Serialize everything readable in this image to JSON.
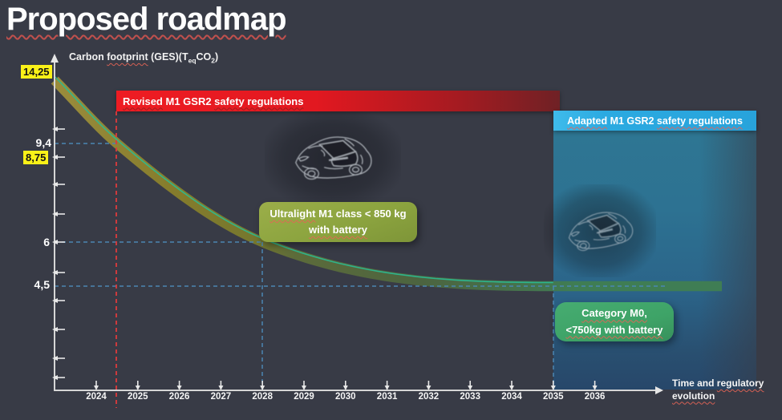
{
  "slide": {
    "title": "Proposed roadmap"
  },
  "y_axis": {
    "label_pre": "Carbon ",
    "label_footprint": "footprint",
    "label_mid": " (GES)(T",
    "label_sub_eq": "eq",
    "label_co": "CO",
    "label_sub_2": "2",
    "label_post": ")",
    "tick_14_25": "14,25",
    "tick_9_4": "9,4",
    "tick_8_75": "8,75",
    "tick_6": "6",
    "tick_4_5": "4,5"
  },
  "x_axis": {
    "years": [
      "2024",
      "2025",
      "2026",
      "2027",
      "2028",
      "2029",
      "2030",
      "2031",
      "2032",
      "2033",
      "2034",
      "2035",
      "2036"
    ],
    "caption_pre": "Time and ",
    "caption_word": "regulatory",
    "caption_line2": "evolution"
  },
  "banners": {
    "revised_word": "Revised",
    "revised_mid": " M1 GSR2 ",
    "revised_rest": "safety regulations",
    "adapted_word": "Adapted",
    "adapted_mid": " M1 GSR2 ",
    "adapted_rest": "safety regulations"
  },
  "callouts": {
    "ultralight_word": "Ultralight",
    "ultralight_rest": " M1 class < 850 kg",
    "ultralight_line2": "with battery",
    "m0_line1": "Category M0,",
    "m0_line2": "<750kg with battery"
  },
  "colors": {
    "background": "#383B46",
    "revised_banner_red": "#E8151B",
    "adapted_banner_blue": "#2BAAE1",
    "highlight_yellow": "#FAF118",
    "ultralight_green": "#8CA43F",
    "m0_green": "#3EA367",
    "band_olive": "#7E7828",
    "band_green": "#3F7D54",
    "band_teal_edge": "#2ABB93",
    "dashed_blue": "#4A86B2",
    "dashed_red": "#DE3A3C"
  },
  "chart_data": {
    "type": "area",
    "title": "Proposed roadmap",
    "ylabel": "Carbon footprint (GES)(TeqCO2)",
    "xlabel": "Time and regulatory evolution",
    "x_ticks": [
      2024,
      2025,
      2026,
      2027,
      2028,
      2029,
      2030,
      2031,
      2032,
      2033,
      2034,
      2035,
      2036
    ],
    "y_labeled_values": [
      14.25,
      9.4,
      8.75,
      6,
      4.5
    ],
    "grid": false,
    "legend": "none",
    "series": [
      {
        "name": "carbon-footprint-trajectory",
        "points": [
          {
            "x": 2023.0,
            "y": 14.25
          },
          {
            "x": 2024.5,
            "y": 9.4
          },
          {
            "x": 2028.0,
            "y": 6.0
          },
          {
            "x": 2035.0,
            "y": 4.5
          },
          {
            "x": 2036.6,
            "y": 4.5
          }
        ]
      }
    ],
    "annotations": [
      {
        "type": "vline",
        "x": 2024.5,
        "style": "red-dashed",
        "label": "Revised M1 GSR2 safety regulations"
      },
      {
        "type": "vline",
        "x": 2028,
        "style": "blue-dashed",
        "label": "Ultralight M1 class < 850 kg with battery",
        "y": 6
      },
      {
        "type": "vline",
        "x": 2035,
        "style": "blue-dashed",
        "label": "Category M0, <750kg with battery",
        "y": 4.5
      },
      {
        "type": "region",
        "x_start": 2035,
        "label": "Adapted M1 GSR2 safety regulations"
      },
      {
        "type": "point-label",
        "x": 2023,
        "y": 14.25,
        "text": "14,25",
        "highlight": true
      },
      {
        "type": "point-label",
        "y": 8.75,
        "text": "8,75",
        "highlight": true
      }
    ]
  }
}
